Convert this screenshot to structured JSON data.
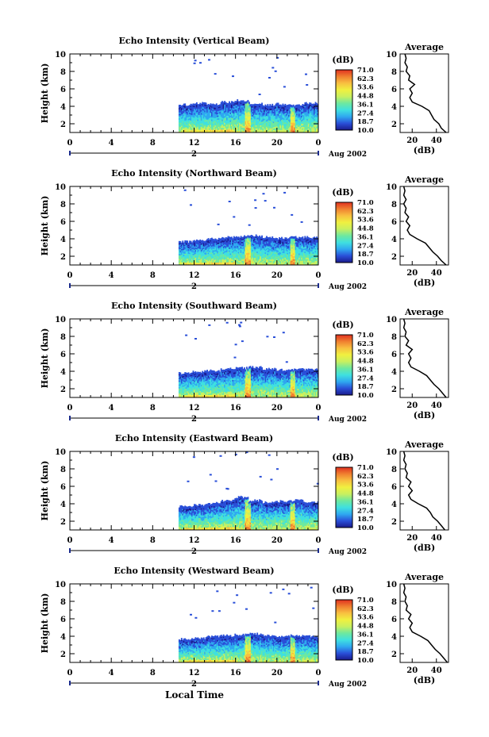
{
  "figure": {
    "xlabel": "Local Time",
    "date_label": "Aug 2002",
    "day_label": "2",
    "colorbar_unit": "(dB)",
    "colorbar_ticks": [
      "71.0",
      "62.3",
      "53.6",
      "44.8",
      "36.1",
      "27.4",
      "18.7",
      "10.0"
    ],
    "colormap": [
      "#1a1a8c",
      "#2a4fd8",
      "#2fa8f0",
      "#3fe0e0",
      "#6de8a0",
      "#c8f060",
      "#f0f040",
      "#f8c040",
      "#f08030",
      "#e03020"
    ],
    "avg_title": "Average",
    "avg_xlabel": "(dB)",
    "line_color": "#000000"
  },
  "chart_data": [
    {
      "type": "heatmap",
      "title": "Echo Intensity (Vertical Beam)",
      "xlabel": "",
      "ylabel": "Height (km)",
      "x_ticks": [
        "0",
        "4",
        "8",
        "12",
        "16",
        "20",
        "0"
      ],
      "y_ticks": [
        "2",
        "4",
        "6",
        "8",
        "10"
      ],
      "xlim": [
        0,
        24
      ],
      "ylim": [
        1,
        10
      ],
      "zlim": [
        10.0,
        71.0
      ],
      "data_start_hour": 10.5,
      "echo_top_km": [
        4.0,
        4.2,
        4.1,
        4.3,
        4.5,
        4.2,
        4.0,
        4.1,
        4.0,
        4.2
      ],
      "average_profile": {
        "xlabel": "(dB)",
        "x_ticks": [
          "20",
          "40"
        ],
        "xlim": [
          10,
          50
        ],
        "y_ticks": [
          "2",
          "4",
          "6",
          "8",
          "10"
        ],
        "ylim": [
          1,
          10
        ],
        "height_km": [
          1.0,
          1.5,
          2.0,
          2.5,
          3.0,
          3.5,
          4.0,
          4.5,
          5.0,
          5.5,
          6.0,
          6.5,
          7.0,
          7.5,
          8.0,
          8.5,
          9.0,
          9.5,
          10.0
        ],
        "db": [
          48,
          44,
          42,
          38,
          36,
          34,
          28,
          20,
          18,
          20,
          18,
          22,
          17,
          18,
          15,
          16,
          14,
          15,
          14
        ]
      }
    },
    {
      "type": "heatmap",
      "title": "Echo Intensity (Northward Beam)",
      "xlabel": "",
      "ylabel": "Height (km)",
      "x_ticks": [
        "0",
        "4",
        "8",
        "12",
        "16",
        "20",
        "0"
      ],
      "y_ticks": [
        "2",
        "4",
        "6",
        "8",
        "10"
      ],
      "xlim": [
        0,
        24
      ],
      "ylim": [
        1,
        10
      ],
      "zlim": [
        10.0,
        71.0
      ],
      "data_start_hour": 10.5,
      "echo_top_km": [
        3.5,
        3.6,
        3.8,
        4.0,
        4.1,
        4.2,
        4.0,
        3.9,
        4.0,
        4.0
      ],
      "average_profile": {
        "xlabel": "(dB)",
        "x_ticks": [
          "20",
          "40"
        ],
        "xlim": [
          10,
          50
        ],
        "y_ticks": [
          "2",
          "4",
          "6",
          "8",
          "10"
        ],
        "ylim": [
          1,
          10
        ],
        "height_km": [
          1.0,
          1.5,
          2.0,
          2.5,
          3.0,
          3.5,
          4.0,
          4.5,
          5.0,
          5.5,
          6.0,
          6.5,
          7.0,
          7.5,
          8.0,
          8.5,
          9.0,
          9.5,
          10.0
        ],
        "db": [
          48,
          44,
          41,
          37,
          34,
          31,
          24,
          18,
          16,
          18,
          15,
          17,
          14,
          15,
          13,
          15,
          13,
          14,
          13
        ]
      }
    },
    {
      "type": "heatmap",
      "title": "Echo Intensity (Southward Beam)",
      "xlabel": "",
      "ylabel": "Height (km)",
      "x_ticks": [
        "0",
        "4",
        "8",
        "12",
        "16",
        "20",
        "0"
      ],
      "y_ticks": [
        "2",
        "4",
        "6",
        "8",
        "10"
      ],
      "xlim": [
        0,
        24
      ],
      "ylim": [
        1,
        10
      ],
      "zlim": [
        10.0,
        71.0
      ],
      "data_start_hour": 10.5,
      "echo_top_km": [
        3.6,
        3.8,
        3.9,
        4.1,
        4.2,
        4.3,
        4.1,
        4.0,
        4.1,
        4.0
      ],
      "average_profile": {
        "xlabel": "(dB)",
        "x_ticks": [
          "20",
          "40"
        ],
        "xlim": [
          10,
          50
        ],
        "y_ticks": [
          "2",
          "4",
          "6",
          "8",
          "10"
        ],
        "ylim": [
          1,
          10
        ],
        "height_km": [
          1.0,
          1.5,
          2.0,
          2.5,
          3.0,
          3.5,
          4.0,
          4.5,
          5.0,
          5.5,
          6.0,
          6.5,
          7.0,
          7.5,
          8.0,
          8.5,
          9.0,
          9.5,
          10.0
        ],
        "db": [
          48,
          45,
          42,
          38,
          35,
          32,
          26,
          19,
          17,
          19,
          17,
          20,
          15,
          17,
          14,
          15,
          13,
          14,
          13
        ]
      }
    },
    {
      "type": "heatmap",
      "title": "Echo Intensity (Eastward Beam)",
      "xlabel": "",
      "ylabel": "Height (km)",
      "x_ticks": [
        "0",
        "4",
        "8",
        "12",
        "16",
        "20",
        "0"
      ],
      "y_ticks": [
        "2",
        "4",
        "6",
        "8",
        "10"
      ],
      "xlim": [
        0,
        24
      ],
      "ylim": [
        1,
        10
      ],
      "zlim": [
        10.0,
        71.0
      ],
      "data_start_hour": 10.5,
      "echo_top_km": [
        3.5,
        3.7,
        3.9,
        4.2,
        4.6,
        4.2,
        4.0,
        4.1,
        4.2,
        4.0
      ],
      "average_profile": {
        "xlabel": "(dB)",
        "x_ticks": [
          "20",
          "40"
        ],
        "xlim": [
          10,
          50
        ],
        "y_ticks": [
          "2",
          "4",
          "6",
          "8",
          "10"
        ],
        "ylim": [
          1,
          10
        ],
        "height_km": [
          1.0,
          1.5,
          2.0,
          2.5,
          3.0,
          3.5,
          4.0,
          4.5,
          5.0,
          5.5,
          6.0,
          6.5,
          7.0,
          7.5,
          8.0,
          8.5,
          9.0,
          9.5,
          10.0
        ],
        "db": [
          47,
          44,
          41,
          37,
          35,
          32,
          25,
          19,
          17,
          20,
          17,
          19,
          15,
          16,
          14,
          15,
          13,
          14,
          13
        ]
      }
    },
    {
      "type": "heatmap",
      "title": "Echo Intensity (Westward Beam)",
      "xlabel": "",
      "ylabel": "Height (km)",
      "x_ticks": [
        "0",
        "4",
        "8",
        "12",
        "16",
        "20",
        "0"
      ],
      "y_ticks": [
        "2",
        "4",
        "6",
        "8",
        "10"
      ],
      "xlim": [
        0,
        24
      ],
      "ylim": [
        1,
        10
      ],
      "zlim": [
        10.0,
        71.0
      ],
      "data_start_hour": 10.5,
      "echo_top_km": [
        3.5,
        3.6,
        3.8,
        3.9,
        4.0,
        4.1,
        3.9,
        3.8,
        3.9,
        3.8
      ],
      "average_profile": {
        "xlabel": "(dB)",
        "x_ticks": [
          "20",
          "40"
        ],
        "xlim": [
          10,
          50
        ],
        "y_ticks": [
          "2",
          "4",
          "6",
          "8",
          "10"
        ],
        "ylim": [
          1,
          10
        ],
        "height_km": [
          1.0,
          1.5,
          2.0,
          2.5,
          3.0,
          3.5,
          4.0,
          4.5,
          5.0,
          5.5,
          6.0,
          6.5,
          7.0,
          7.5,
          8.0,
          8.5,
          9.0,
          9.5,
          10.0
        ],
        "db": [
          49,
          46,
          43,
          39,
          36,
          33,
          27,
          20,
          18,
          20,
          17,
          19,
          15,
          16,
          14,
          15,
          13,
          14,
          13
        ]
      }
    }
  ]
}
